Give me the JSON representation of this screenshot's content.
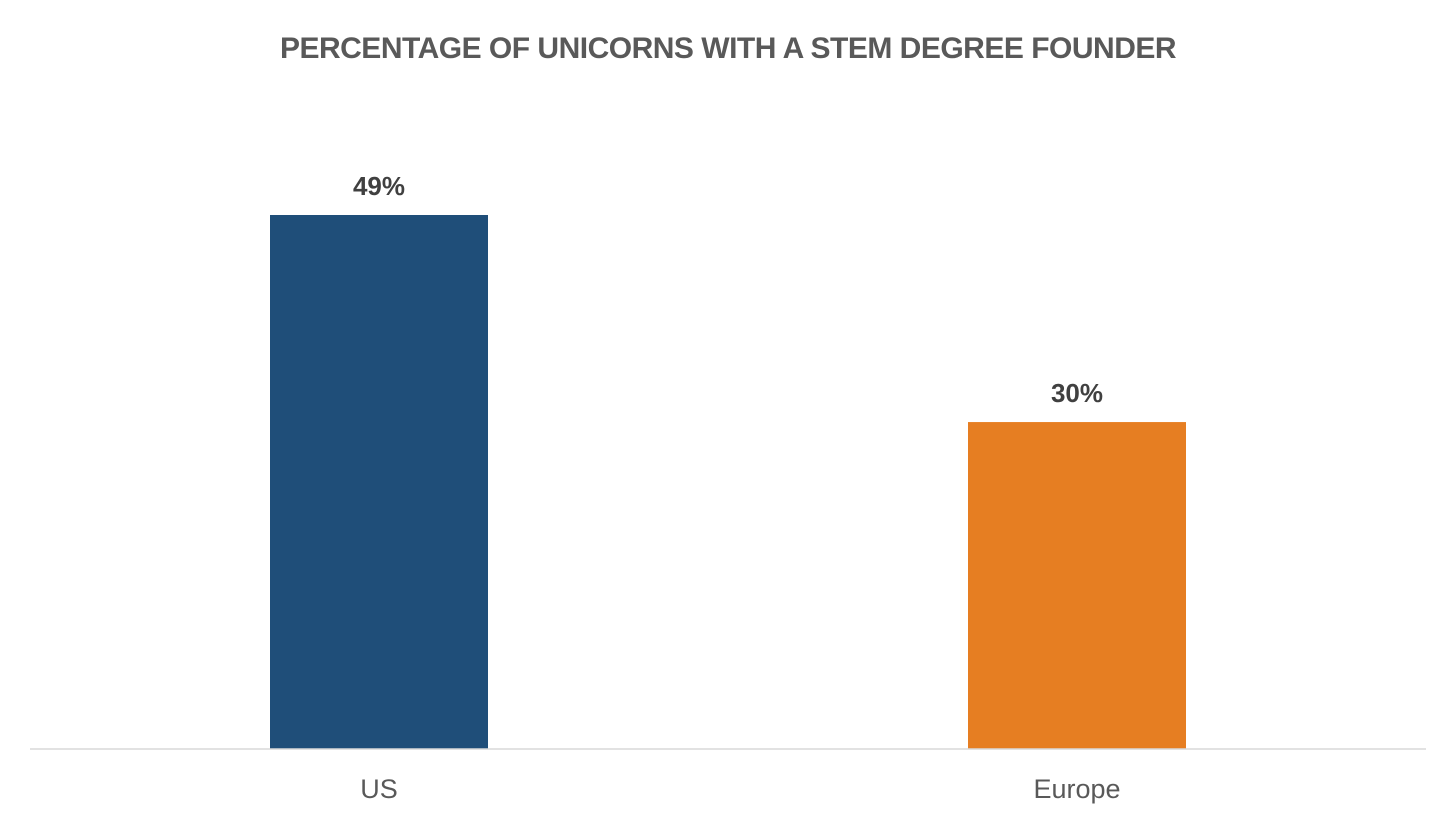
{
  "chart_data": {
    "type": "bar",
    "title": "PERCENTAGE OF UNICORNS WITH A STEM DEGREE FOUNDER",
    "categories": [
      "US",
      "Europe"
    ],
    "values": [
      49,
      30
    ],
    "data_labels": [
      "49%",
      "30%"
    ],
    "bar_colors": [
      "#1f4e79",
      "#e67e22"
    ],
    "ylim": [
      0,
      60
    ],
    "grid": false,
    "legend": "none",
    "xlabel": "",
    "ylabel": ""
  },
  "colors": {
    "title": "#595959",
    "data_label": "#404040",
    "category_label": "#595959",
    "axis_line": "#d9d9d9",
    "background": "#ffffff"
  }
}
